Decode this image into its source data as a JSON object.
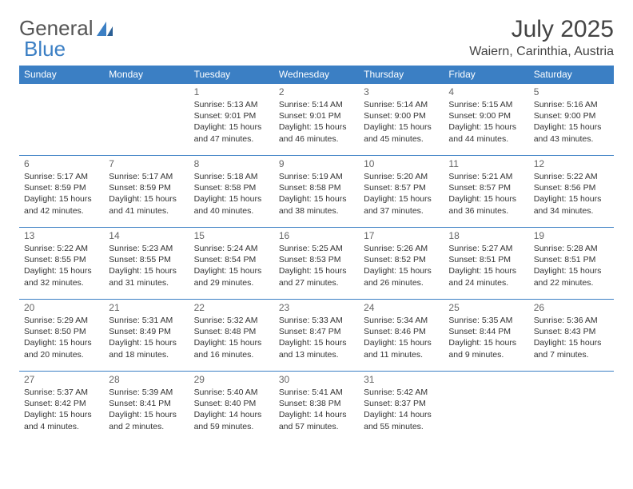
{
  "brand": {
    "part1": "General",
    "part2": "Blue"
  },
  "title": "July 2025",
  "location": "Waiern, Carinthia, Austria",
  "colors": {
    "header_bg": "#3b7fc4",
    "header_text": "#ffffff",
    "border": "#3b7fc4",
    "body_text": "#333333",
    "muted_text": "#666666",
    "background": "#ffffff"
  },
  "weekdays": [
    "Sunday",
    "Monday",
    "Tuesday",
    "Wednesday",
    "Thursday",
    "Friday",
    "Saturday"
  ],
  "layout": {
    "weeks": 5,
    "first_day_column": 2
  },
  "days": {
    "1": {
      "sunrise": "5:13 AM",
      "sunset": "9:01 PM",
      "daylight": "15 hours and 47 minutes."
    },
    "2": {
      "sunrise": "5:14 AM",
      "sunset": "9:01 PM",
      "daylight": "15 hours and 46 minutes."
    },
    "3": {
      "sunrise": "5:14 AM",
      "sunset": "9:00 PM",
      "daylight": "15 hours and 45 minutes."
    },
    "4": {
      "sunrise": "5:15 AM",
      "sunset": "9:00 PM",
      "daylight": "15 hours and 44 minutes."
    },
    "5": {
      "sunrise": "5:16 AM",
      "sunset": "9:00 PM",
      "daylight": "15 hours and 43 minutes."
    },
    "6": {
      "sunrise": "5:17 AM",
      "sunset": "8:59 PM",
      "daylight": "15 hours and 42 minutes."
    },
    "7": {
      "sunrise": "5:17 AM",
      "sunset": "8:59 PM",
      "daylight": "15 hours and 41 minutes."
    },
    "8": {
      "sunrise": "5:18 AM",
      "sunset": "8:58 PM",
      "daylight": "15 hours and 40 minutes."
    },
    "9": {
      "sunrise": "5:19 AM",
      "sunset": "8:58 PM",
      "daylight": "15 hours and 38 minutes."
    },
    "10": {
      "sunrise": "5:20 AM",
      "sunset": "8:57 PM",
      "daylight": "15 hours and 37 minutes."
    },
    "11": {
      "sunrise": "5:21 AM",
      "sunset": "8:57 PM",
      "daylight": "15 hours and 36 minutes."
    },
    "12": {
      "sunrise": "5:22 AM",
      "sunset": "8:56 PM",
      "daylight": "15 hours and 34 minutes."
    },
    "13": {
      "sunrise": "5:22 AM",
      "sunset": "8:55 PM",
      "daylight": "15 hours and 32 minutes."
    },
    "14": {
      "sunrise": "5:23 AM",
      "sunset": "8:55 PM",
      "daylight": "15 hours and 31 minutes."
    },
    "15": {
      "sunrise": "5:24 AM",
      "sunset": "8:54 PM",
      "daylight": "15 hours and 29 minutes."
    },
    "16": {
      "sunrise": "5:25 AM",
      "sunset": "8:53 PM",
      "daylight": "15 hours and 27 minutes."
    },
    "17": {
      "sunrise": "5:26 AM",
      "sunset": "8:52 PM",
      "daylight": "15 hours and 26 minutes."
    },
    "18": {
      "sunrise": "5:27 AM",
      "sunset": "8:51 PM",
      "daylight": "15 hours and 24 minutes."
    },
    "19": {
      "sunrise": "5:28 AM",
      "sunset": "8:51 PM",
      "daylight": "15 hours and 22 minutes."
    },
    "20": {
      "sunrise": "5:29 AM",
      "sunset": "8:50 PM",
      "daylight": "15 hours and 20 minutes."
    },
    "21": {
      "sunrise": "5:31 AM",
      "sunset": "8:49 PM",
      "daylight": "15 hours and 18 minutes."
    },
    "22": {
      "sunrise": "5:32 AM",
      "sunset": "8:48 PM",
      "daylight": "15 hours and 16 minutes."
    },
    "23": {
      "sunrise": "5:33 AM",
      "sunset": "8:47 PM",
      "daylight": "15 hours and 13 minutes."
    },
    "24": {
      "sunrise": "5:34 AM",
      "sunset": "8:46 PM",
      "daylight": "15 hours and 11 minutes."
    },
    "25": {
      "sunrise": "5:35 AM",
      "sunset": "8:44 PM",
      "daylight": "15 hours and 9 minutes."
    },
    "26": {
      "sunrise": "5:36 AM",
      "sunset": "8:43 PM",
      "daylight": "15 hours and 7 minutes."
    },
    "27": {
      "sunrise": "5:37 AM",
      "sunset": "8:42 PM",
      "daylight": "15 hours and 4 minutes."
    },
    "28": {
      "sunrise": "5:39 AM",
      "sunset": "8:41 PM",
      "daylight": "15 hours and 2 minutes."
    },
    "29": {
      "sunrise": "5:40 AM",
      "sunset": "8:40 PM",
      "daylight": "14 hours and 59 minutes."
    },
    "30": {
      "sunrise": "5:41 AM",
      "sunset": "8:38 PM",
      "daylight": "14 hours and 57 minutes."
    },
    "31": {
      "sunrise": "5:42 AM",
      "sunset": "8:37 PM",
      "daylight": "14 hours and 55 minutes."
    }
  },
  "labels": {
    "sunrise": "Sunrise:",
    "sunset": "Sunset:",
    "daylight": "Daylight:"
  }
}
